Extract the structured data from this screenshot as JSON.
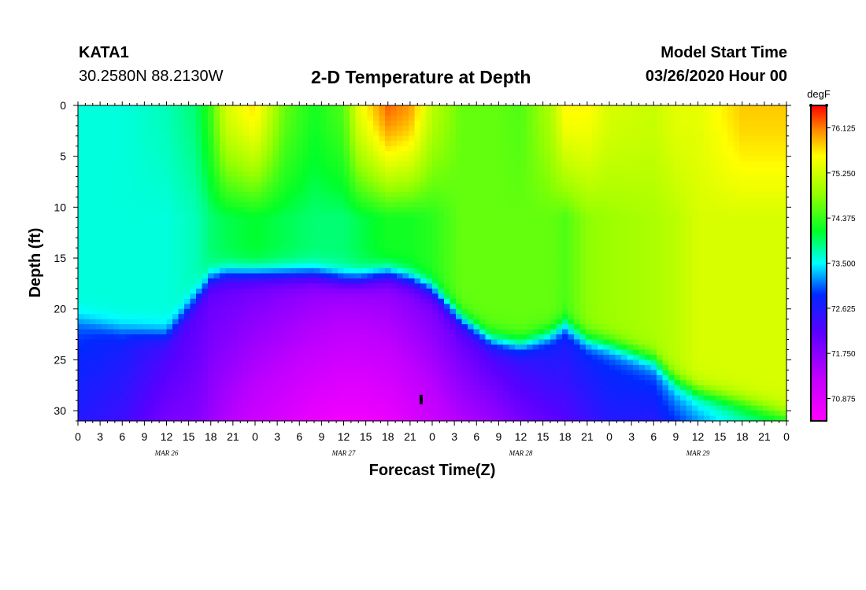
{
  "header": {
    "station": "KATA1",
    "coords": "30.2580N 88.2130W",
    "title": "2-D Temperature at Depth",
    "start_label": "Model Start Time",
    "start_value": "03/26/2020 Hour 00"
  },
  "chart_data": {
    "type": "heatmap",
    "title": "2-D Temperature at Depth",
    "xlabel": "Forecast Time(Z)",
    "ylabel": "Depth (ft)",
    "x_range_hours": [
      0,
      96
    ],
    "x_ticks_hours": [
      0,
      3,
      6,
      9,
      12,
      15,
      18,
      21,
      24,
      27,
      30,
      33,
      36,
      39,
      42,
      45,
      48,
      51,
      54,
      57,
      60,
      63,
      66,
      69,
      72,
      75,
      78,
      81,
      84,
      87,
      90,
      93,
      96
    ],
    "x_tick_labels": [
      "0",
      "3",
      "6",
      "9",
      "12",
      "15",
      "18",
      "21",
      "0",
      "3",
      "6",
      "9",
      "12",
      "15",
      "18",
      "21",
      "0",
      "3",
      "6",
      "9",
      "12",
      "15",
      "18",
      "21",
      "0",
      "3",
      "6",
      "9",
      "12",
      "15",
      "18",
      "21",
      "0"
    ],
    "date_labels": [
      {
        "hour": 12,
        "text": "MAR 26"
      },
      {
        "hour": 36,
        "text": "MAR 27"
      },
      {
        "hour": 60,
        "text": "MAR 28"
      },
      {
        "hour": 84,
        "text": "MAR 29"
      }
    ],
    "ylim": [
      0,
      31
    ],
    "y_ticks": [
      0,
      5,
      10,
      15,
      20,
      25,
      30
    ],
    "y_tick_labels": [
      "0",
      "5",
      "10",
      "15",
      "20",
      "25",
      "30"
    ],
    "colorbar": {
      "unit": "degF",
      "range": [
        70.44,
        76.56
      ],
      "ticks": [
        70.875,
        71.75,
        72.625,
        73.5,
        74.375,
        75.25,
        76.125
      ],
      "tick_labels": [
        "70.875",
        "71.750",
        "72.625",
        "73.500",
        "74.375",
        "75.250",
        "76.125"
      ]
    },
    "columns": [
      {
        "hour": 0,
        "surface": 73.6,
        "t_above": 73.6,
        "t_below": 73.0,
        "t_bottom": 72.6,
        "thermocline_ft": 21
      },
      {
        "hour": 6,
        "surface": 73.6,
        "t_above": 73.6,
        "t_below": 72.8,
        "t_bottom": 72.4,
        "thermocline_ft": 22
      },
      {
        "hour": 12,
        "surface": 73.7,
        "t_above": 73.6,
        "t_below": 72.4,
        "t_bottom": 71.9,
        "thermocline_ft": 22.5
      },
      {
        "hour": 16,
        "surface": 73.9,
        "t_above": 73.7,
        "t_below": 72.2,
        "t_bottom": 71.8,
        "thermocline_ft": 19
      },
      {
        "hour": 18,
        "surface": 74.4,
        "t_above": 73.9,
        "t_below": 72.1,
        "t_bottom": 71.6,
        "thermocline_ft": 17
      },
      {
        "hour": 20,
        "surface": 75.3,
        "t_above": 74.0,
        "t_below": 72.1,
        "t_bottom": 71.4,
        "thermocline_ft": 16.5
      },
      {
        "hour": 24,
        "surface": 75.7,
        "t_above": 74.1,
        "t_below": 72.0,
        "t_bottom": 71.1,
        "thermocline_ft": 16.5
      },
      {
        "hour": 28,
        "surface": 74.6,
        "t_above": 74.0,
        "t_below": 71.9,
        "t_bottom": 70.9,
        "thermocline_ft": 16.5
      },
      {
        "hour": 32,
        "surface": 74.2,
        "t_above": 73.9,
        "t_below": 71.8,
        "t_bottom": 70.7,
        "thermocline_ft": 16.5
      },
      {
        "hour": 36,
        "surface": 74.5,
        "t_above": 73.9,
        "t_below": 71.7,
        "t_bottom": 70.6,
        "thermocline_ft": 17
      },
      {
        "hour": 38,
        "surface": 75.4,
        "t_above": 74.0,
        "t_below": 71.7,
        "t_bottom": 70.6,
        "thermocline_ft": 17
      },
      {
        "hour": 42,
        "surface": 76.2,
        "t_above": 74.2,
        "t_below": 71.8,
        "t_bottom": 70.7,
        "thermocline_ft": 16.5
      },
      {
        "hour": 45,
        "surface": 76.0,
        "t_above": 74.2,
        "t_below": 71.9,
        "t_bottom": 70.9,
        "thermocline_ft": 17
      },
      {
        "hour": 48,
        "surface": 75.1,
        "t_above": 74.3,
        "t_below": 72.0,
        "t_bottom": 71.1,
        "thermocline_ft": 18
      },
      {
        "hour": 52,
        "surface": 74.6,
        "t_above": 74.6,
        "t_below": 72.2,
        "t_bottom": 71.4,
        "thermocline_ft": 21
      },
      {
        "hour": 56,
        "surface": 74.6,
        "t_above": 74.6,
        "t_below": 72.4,
        "t_bottom": 71.6,
        "thermocline_ft": 23
      },
      {
        "hour": 60,
        "surface": 74.5,
        "t_above": 74.6,
        "t_below": 72.6,
        "t_bottom": 71.9,
        "thermocline_ft": 23.5
      },
      {
        "hour": 64,
        "surface": 75.0,
        "t_above": 74.6,
        "t_below": 72.8,
        "t_bottom": 72.1,
        "thermocline_ft": 22.5
      },
      {
        "hour": 66,
        "surface": 75.6,
        "t_above": 74.5,
        "t_below": 72.8,
        "t_bottom": 72.2,
        "thermocline_ft": 21.5
      },
      {
        "hour": 69,
        "surface": 75.6,
        "t_above": 74.8,
        "t_below": 72.9,
        "t_bottom": 72.4,
        "thermocline_ft": 23
      },
      {
        "hour": 72,
        "surface": 75.3,
        "t_above": 74.9,
        "t_below": 73.0,
        "t_bottom": 72.6,
        "thermocline_ft": 23.5
      },
      {
        "hour": 78,
        "surface": 75.2,
        "t_above": 75.0,
        "t_below": 73.1,
        "t_bottom": 72.6,
        "thermocline_ft": 25
      },
      {
        "hour": 81,
        "surface": 75.4,
        "t_above": 75.1,
        "t_below": 73.4,
        "t_bottom": 72.9,
        "thermocline_ft": 27
      },
      {
        "hour": 84,
        "surface": 75.4,
        "t_above": 75.3,
        "t_below": 73.6,
        "t_bottom": 73.2,
        "thermocline_ft": 28
      },
      {
        "hour": 90,
        "surface": 75.8,
        "t_above": 75.3,
        "t_below": 74.0,
        "t_bottom": 73.7,
        "thermocline_ft": 29
      },
      {
        "hour": 96,
        "surface": 75.8,
        "t_above": 75.3,
        "t_below": 74.5,
        "t_bottom": 74.1,
        "thermocline_ft": 30
      }
    ],
    "marker": {
      "hour": 46.5,
      "depth_ft": 28.9
    }
  }
}
